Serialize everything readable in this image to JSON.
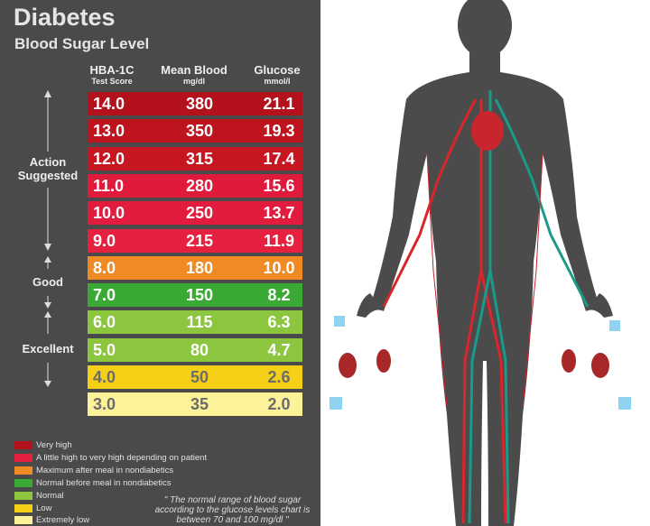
{
  "header": {
    "title": "Diabetes",
    "subtitle": "Blood Sugar Level"
  },
  "table": {
    "columns": [
      {
        "title": "HBA-1C",
        "subtitle": "Test Score"
      },
      {
        "title": "Mean Blood",
        "subtitle": "mg/dl"
      },
      {
        "title": "Glucose",
        "subtitle": "mmol/l"
      }
    ],
    "rows": [
      {
        "cells": [
          "14.0",
          "380",
          "21.1"
        ],
        "color": "#b3121c",
        "text_color": "#ffffff"
      },
      {
        "cells": [
          "13.0",
          "350",
          "19.3"
        ],
        "color": "#bd141e",
        "text_color": "#ffffff"
      },
      {
        "cells": [
          "12.0",
          "315",
          "17.4"
        ],
        "color": "#c61620",
        "text_color": "#ffffff"
      },
      {
        "cells": [
          "11.0",
          "280",
          "15.6"
        ],
        "color": "#df1a3b",
        "text_color": "#ffffff"
      },
      {
        "cells": [
          "10.0",
          "250",
          "13.7"
        ],
        "color": "#e21c3e",
        "text_color": "#ffffff"
      },
      {
        "cells": [
          "9.0",
          "215",
          "11.9"
        ],
        "color": "#e6213f",
        "text_color": "#ffffff"
      },
      {
        "cells": [
          "8.0",
          "180",
          "10.0"
        ],
        "color": "#f08a24",
        "text_color": "#ffffff"
      },
      {
        "cells": [
          "7.0",
          "150",
          "8.2"
        ],
        "color": "#3aaa35",
        "text_color": "#ffffff"
      },
      {
        "cells": [
          "6.0",
          "115",
          "6.3"
        ],
        "color": "#8cc63f",
        "text_color": "#ffffff"
      },
      {
        "cells": [
          "5.0",
          "80",
          "4.7"
        ],
        "color": "#8cc63f",
        "text_color": "#ffffff"
      },
      {
        "cells": [
          "4.0",
          "50",
          "2.6"
        ],
        "color": "#f5d016",
        "text_color": "#6b6b6b"
      },
      {
        "cells": [
          "3.0",
          "35",
          "2.0"
        ],
        "color": "#fbf29a",
        "text_color": "#6b6b6b"
      }
    ]
  },
  "groups": [
    {
      "label": "Action Suggested"
    },
    {
      "label": "Good"
    },
    {
      "label": "Excellent"
    }
  ],
  "legend": [
    {
      "label": "Very high",
      "color": "#b3121c"
    },
    {
      "label": "A little high to very high depending on patient",
      "color": "#e6213f"
    },
    {
      "label": "Maximum after meal in nondiabetics",
      "color": "#f08a24"
    },
    {
      "label": "Normal before meal in nondiabetics",
      "color": "#3aaa35"
    },
    {
      "label": "Normal",
      "color": "#8cc63f"
    },
    {
      "label": "Low",
      "color": "#f5d016"
    },
    {
      "label": "Extremely low",
      "color": "#fbf29a"
    }
  ],
  "note": "\" The normal range of blood sugar according to the glucose levels chart is between 70 and 100 mg/dl \""
}
